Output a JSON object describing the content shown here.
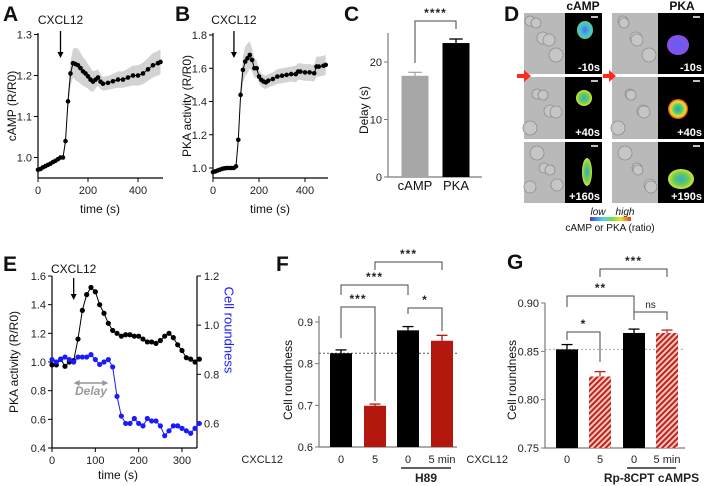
{
  "panels": {
    "A": "A",
    "B": "B",
    "C": "C",
    "D": "D",
    "E": "E",
    "F": "F",
    "G": "G"
  },
  "panel_d": {
    "col_titles": [
      "cAMP",
      "PKA"
    ],
    "camp_times": [
      "-10s",
      "+40s",
      "+160s"
    ],
    "pka_times": [
      "-10s",
      "+40s",
      "+190s"
    ],
    "colorbar_low": "low",
    "colorbar_high": "high",
    "colorbar_label": "cAMP or PKA (ratio)",
    "marker_color": "#ff2a1a"
  },
  "chart_data": [
    {
      "id": "A",
      "type": "line",
      "xlabel": "time (s)",
      "ylabel": "cAMP (R/R0)",
      "xlim": [
        0,
        500
      ],
      "ylim": [
        0.95,
        1.3
      ],
      "xticks": [
        0,
        200,
        400
      ],
      "xtick_labels": [
        "0",
        "200",
        "400"
      ],
      "yticks": [
        1.0,
        1.1,
        1.2,
        1.3
      ],
      "ytick_labels": [
        "1.0",
        "1.1",
        "1.2",
        "1.3"
      ],
      "annotation": {
        "text": "CXCL12",
        "at": 90
      },
      "series": [
        {
          "name": "cAMP",
          "color": "#000000",
          "band_color": "#d3d3d3",
          "x": [
            0,
            10,
            20,
            30,
            40,
            50,
            60,
            70,
            80,
            90,
            100,
            110,
            120,
            130,
            140,
            150,
            160,
            170,
            180,
            190,
            200,
            210,
            220,
            230,
            240,
            250,
            260,
            280,
            300,
            320,
            340,
            360,
            380,
            400,
            420,
            440,
            460,
            480,
            490
          ],
          "y": [
            0.97,
            0.972,
            0.976,
            0.979,
            0.982,
            0.985,
            0.989,
            0.992,
            0.996,
            1.0,
            1.0,
            1.04,
            1.137,
            1.205,
            1.23,
            1.228,
            1.225,
            1.218,
            1.21,
            1.205,
            1.198,
            1.19,
            1.185,
            1.19,
            1.195,
            1.185,
            1.18,
            1.182,
            1.186,
            1.19,
            1.19,
            1.195,
            1.2,
            1.2,
            1.205,
            1.215,
            1.225,
            1.23,
            1.233
          ],
          "sem": [
            0.003,
            0.003,
            0.003,
            0.003,
            0.003,
            0.003,
            0.003,
            0.003,
            0.003,
            0.003,
            0.003,
            0.01,
            0.02,
            0.03,
            0.035,
            0.04,
            0.04,
            0.038,
            0.035,
            0.033,
            0.03,
            0.028,
            0.025,
            0.022,
            0.02,
            0.018,
            0.017,
            0.017,
            0.018,
            0.02,
            0.02,
            0.022,
            0.024,
            0.025,
            0.026,
            0.028,
            0.03,
            0.03,
            0.03
          ]
        }
      ]
    },
    {
      "id": "B",
      "type": "line",
      "xlabel": "time (s)",
      "ylabel": "PKA activity (R/R0)",
      "xlim": [
        0,
        500
      ],
      "ylim": [
        0.95,
        1.8
      ],
      "xticks": [
        0,
        200,
        400
      ],
      "xtick_labels": [
        "0",
        "200",
        "400"
      ],
      "yticks": [
        1.0,
        1.2,
        1.4,
        1.6,
        1.8
      ],
      "ytick_labels": [
        "1.0",
        "1.2",
        "1.4",
        "1.6",
        "1.8"
      ],
      "annotation": {
        "text": "CXCL12",
        "at": 91
      },
      "series": [
        {
          "name": "PKA",
          "color": "#000000",
          "band_color": "#d3d3d3",
          "x": [
            0,
            10,
            20,
            30,
            40,
            50,
            60,
            70,
            80,
            90,
            100,
            110,
            120,
            130,
            140,
            150,
            160,
            170,
            180,
            190,
            200,
            210,
            220,
            230,
            240,
            260,
            280,
            300,
            320,
            340,
            360,
            370,
            380,
            400,
            420,
            440,
            450,
            460,
            480,
            490
          ],
          "y": [
            0.975,
            0.98,
            0.985,
            0.99,
            0.995,
            0.998,
            1.0,
            1.0,
            1.0,
            1.0,
            1.01,
            1.17,
            1.44,
            1.59,
            1.64,
            1.66,
            1.68,
            1.65,
            1.6,
            1.6,
            1.55,
            1.53,
            1.52,
            1.515,
            1.525,
            1.535,
            1.55,
            1.555,
            1.56,
            1.565,
            1.565,
            1.58,
            1.58,
            1.575,
            1.575,
            1.57,
            1.61,
            1.61,
            1.615,
            1.62
          ],
          "sem": [
            0.005,
            0.005,
            0.005,
            0.005,
            0.005,
            0.005,
            0.005,
            0.005,
            0.005,
            0.005,
            0.005,
            0.02,
            0.05,
            0.08,
            0.09,
            0.09,
            0.08,
            0.07,
            0.06,
            0.05,
            0.04,
            0.04,
            0.04,
            0.04,
            0.04,
            0.04,
            0.045,
            0.045,
            0.045,
            0.045,
            0.05,
            0.05,
            0.05,
            0.05,
            0.05,
            0.05,
            0.06,
            0.06,
            0.06,
            0.06
          ]
        }
      ]
    },
    {
      "id": "C",
      "type": "bar",
      "ylabel": "Delay (s)",
      "ylim": [
        0,
        25
      ],
      "yticks": [
        0,
        10,
        20
      ],
      "ytick_labels": [
        "0",
        "10",
        "20"
      ],
      "bars": [
        {
          "label": "cAMP",
          "value": 17.6,
          "error": 0.6,
          "color": "#a6a6a6",
          "hatched": false
        },
        {
          "label": "PKA",
          "value": 23.3,
          "error": 0.7,
          "color": "#000000",
          "hatched": false
        }
      ],
      "significance": [
        {
          "a": 0,
          "b": 1,
          "label": "****"
        }
      ]
    },
    {
      "id": "E",
      "type": "line",
      "xlabel": "time (s)",
      "ylabel": "PKA activity (R/R0)",
      "ylabel_right": "Cell roundness",
      "xlim": [
        0,
        350
      ],
      "ylim": [
        0.4,
        1.6
      ],
      "ylim_right": [
        0.5,
        1.2
      ],
      "xticks": [
        0,
        100,
        200,
        300
      ],
      "xtick_labels": [
        "0",
        "100",
        "200",
        "300"
      ],
      "yticks": [
        0.4,
        0.6,
        0.8,
        1.0,
        1.2,
        1.4,
        1.6
      ],
      "ytick_labels": [
        "0.4",
        "0.6",
        "0.8",
        "1.0",
        "1.2",
        "1.4",
        "1.6"
      ],
      "yticks_right": [
        0.6,
        0.8,
        1.0,
        1.2
      ],
      "ytick_labels_right": [
        "0.6",
        "0.8",
        "1.0",
        "1.2"
      ],
      "annotation": {
        "text": "CXCL12",
        "at": 50
      },
      "delay": {
        "text": "Delay",
        "from": 50,
        "to": 130,
        "color": "#999999"
      },
      "series": [
        {
          "name": "PKA activity",
          "axis": "left",
          "color": "#000000",
          "x": [
            0,
            10,
            20,
            30,
            40,
            50,
            60,
            70,
            80,
            90,
            100,
            110,
            120,
            130,
            140,
            150,
            160,
            170,
            180,
            190,
            200,
            210,
            220,
            230,
            240,
            250,
            260,
            270,
            280,
            290,
            300,
            310,
            320,
            330,
            340
          ],
          "y": [
            0.98,
            0.98,
            1.02,
            0.97,
            1.0,
            1.01,
            1.16,
            1.36,
            1.47,
            1.52,
            1.49,
            1.4,
            1.34,
            1.27,
            1.22,
            1.2,
            1.18,
            1.19,
            1.19,
            1.18,
            1.18,
            1.16,
            1.14,
            1.14,
            1.13,
            1.15,
            1.18,
            1.2,
            1.17,
            1.12,
            1.08,
            1.03,
            1.02,
            1.0,
            1.02
          ]
        },
        {
          "name": "Cell roundness",
          "axis": "right",
          "color": "#1a1aff",
          "x": [
            0,
            10,
            20,
            30,
            40,
            50,
            60,
            70,
            80,
            90,
            100,
            110,
            120,
            130,
            140,
            150,
            160,
            170,
            180,
            190,
            200,
            210,
            220,
            230,
            240,
            250,
            260,
            270,
            280,
            290,
            300,
            310,
            320,
            330,
            340
          ],
          "y": [
            0.86,
            0.85,
            0.86,
            0.87,
            0.86,
            0.85,
            0.87,
            0.87,
            0.87,
            0.88,
            0.86,
            0.84,
            0.85,
            0.86,
            0.83,
            0.71,
            0.63,
            0.6,
            0.6,
            0.62,
            0.6,
            0.59,
            0.62,
            0.61,
            0.61,
            0.59,
            0.55,
            0.57,
            0.59,
            0.59,
            0.58,
            0.57,
            0.56,
            0.58,
            0.6
          ]
        }
      ]
    },
    {
      "id": "F",
      "type": "bar",
      "ylabel": "Cell roundness",
      "ylim": [
        0.6,
        0.95
      ],
      "yticks": [
        0.6,
        0.7,
        0.8,
        0.9
      ],
      "ytick_labels": [
        "0.6",
        "0.7",
        "0.8",
        "0.9"
      ],
      "row_label": "CXCL12",
      "reference_line": 0.825,
      "bars": [
        {
          "label": "0",
          "value": 0.825,
          "error": 0.008,
          "color": "#000000",
          "hatched": false
        },
        {
          "label": "5",
          "value": 0.699,
          "error": 0.004,
          "color": "#b3170e",
          "hatched": false
        },
        {
          "label": "0",
          "value": 0.88,
          "error": 0.009,
          "color": "#000000",
          "hatched": false
        },
        {
          "label": "5 min",
          "value": 0.855,
          "error": 0.013,
          "color": "#b3170e",
          "hatched": false
        }
      ],
      "group": {
        "label": "H89",
        "from": 2,
        "to": 3
      },
      "significance": [
        {
          "a": 1,
          "b": 3,
          "label": "***"
        },
        {
          "a": 0,
          "b": 2,
          "label": "***"
        },
        {
          "a": 0,
          "b": 1,
          "label": "***"
        },
        {
          "a": 2,
          "b": 3,
          "label": "*"
        }
      ]
    },
    {
      "id": "G",
      "type": "bar",
      "ylabel": "Cell roundness",
      "ylim": [
        0.75,
        0.92
      ],
      "yticks": [
        0.75,
        0.8,
        0.85,
        0.9
      ],
      "ytick_labels": [
        "0.75",
        "0.80",
        "0.85",
        "0.90"
      ],
      "row_label": "CXCL12",
      "reference_line": 0.852,
      "bars": [
        {
          "label": "0",
          "value": 0.852,
          "error": 0.005,
          "color": "#000000",
          "hatched": false
        },
        {
          "label": "5",
          "value": 0.824,
          "error": 0.005,
          "color": "#c0231b",
          "hatched": true
        },
        {
          "label": "0",
          "value": 0.869,
          "error": 0.004,
          "color": "#000000",
          "hatched": false
        },
        {
          "label": "5 min",
          "value": 0.869,
          "error": 0.003,
          "color": "#c0231b",
          "hatched": true
        }
      ],
      "group": {
        "label": "Rp-8CPT cAMPS",
        "from": 2,
        "to": 3
      },
      "significance": [
        {
          "a": 1,
          "b": 3,
          "label": "***"
        },
        {
          "a": 0,
          "b": 2,
          "label": "**"
        },
        {
          "a": 2,
          "b": 3,
          "label": "ns"
        },
        {
          "a": 0,
          "b": 1,
          "label": "*"
        }
      ]
    }
  ]
}
